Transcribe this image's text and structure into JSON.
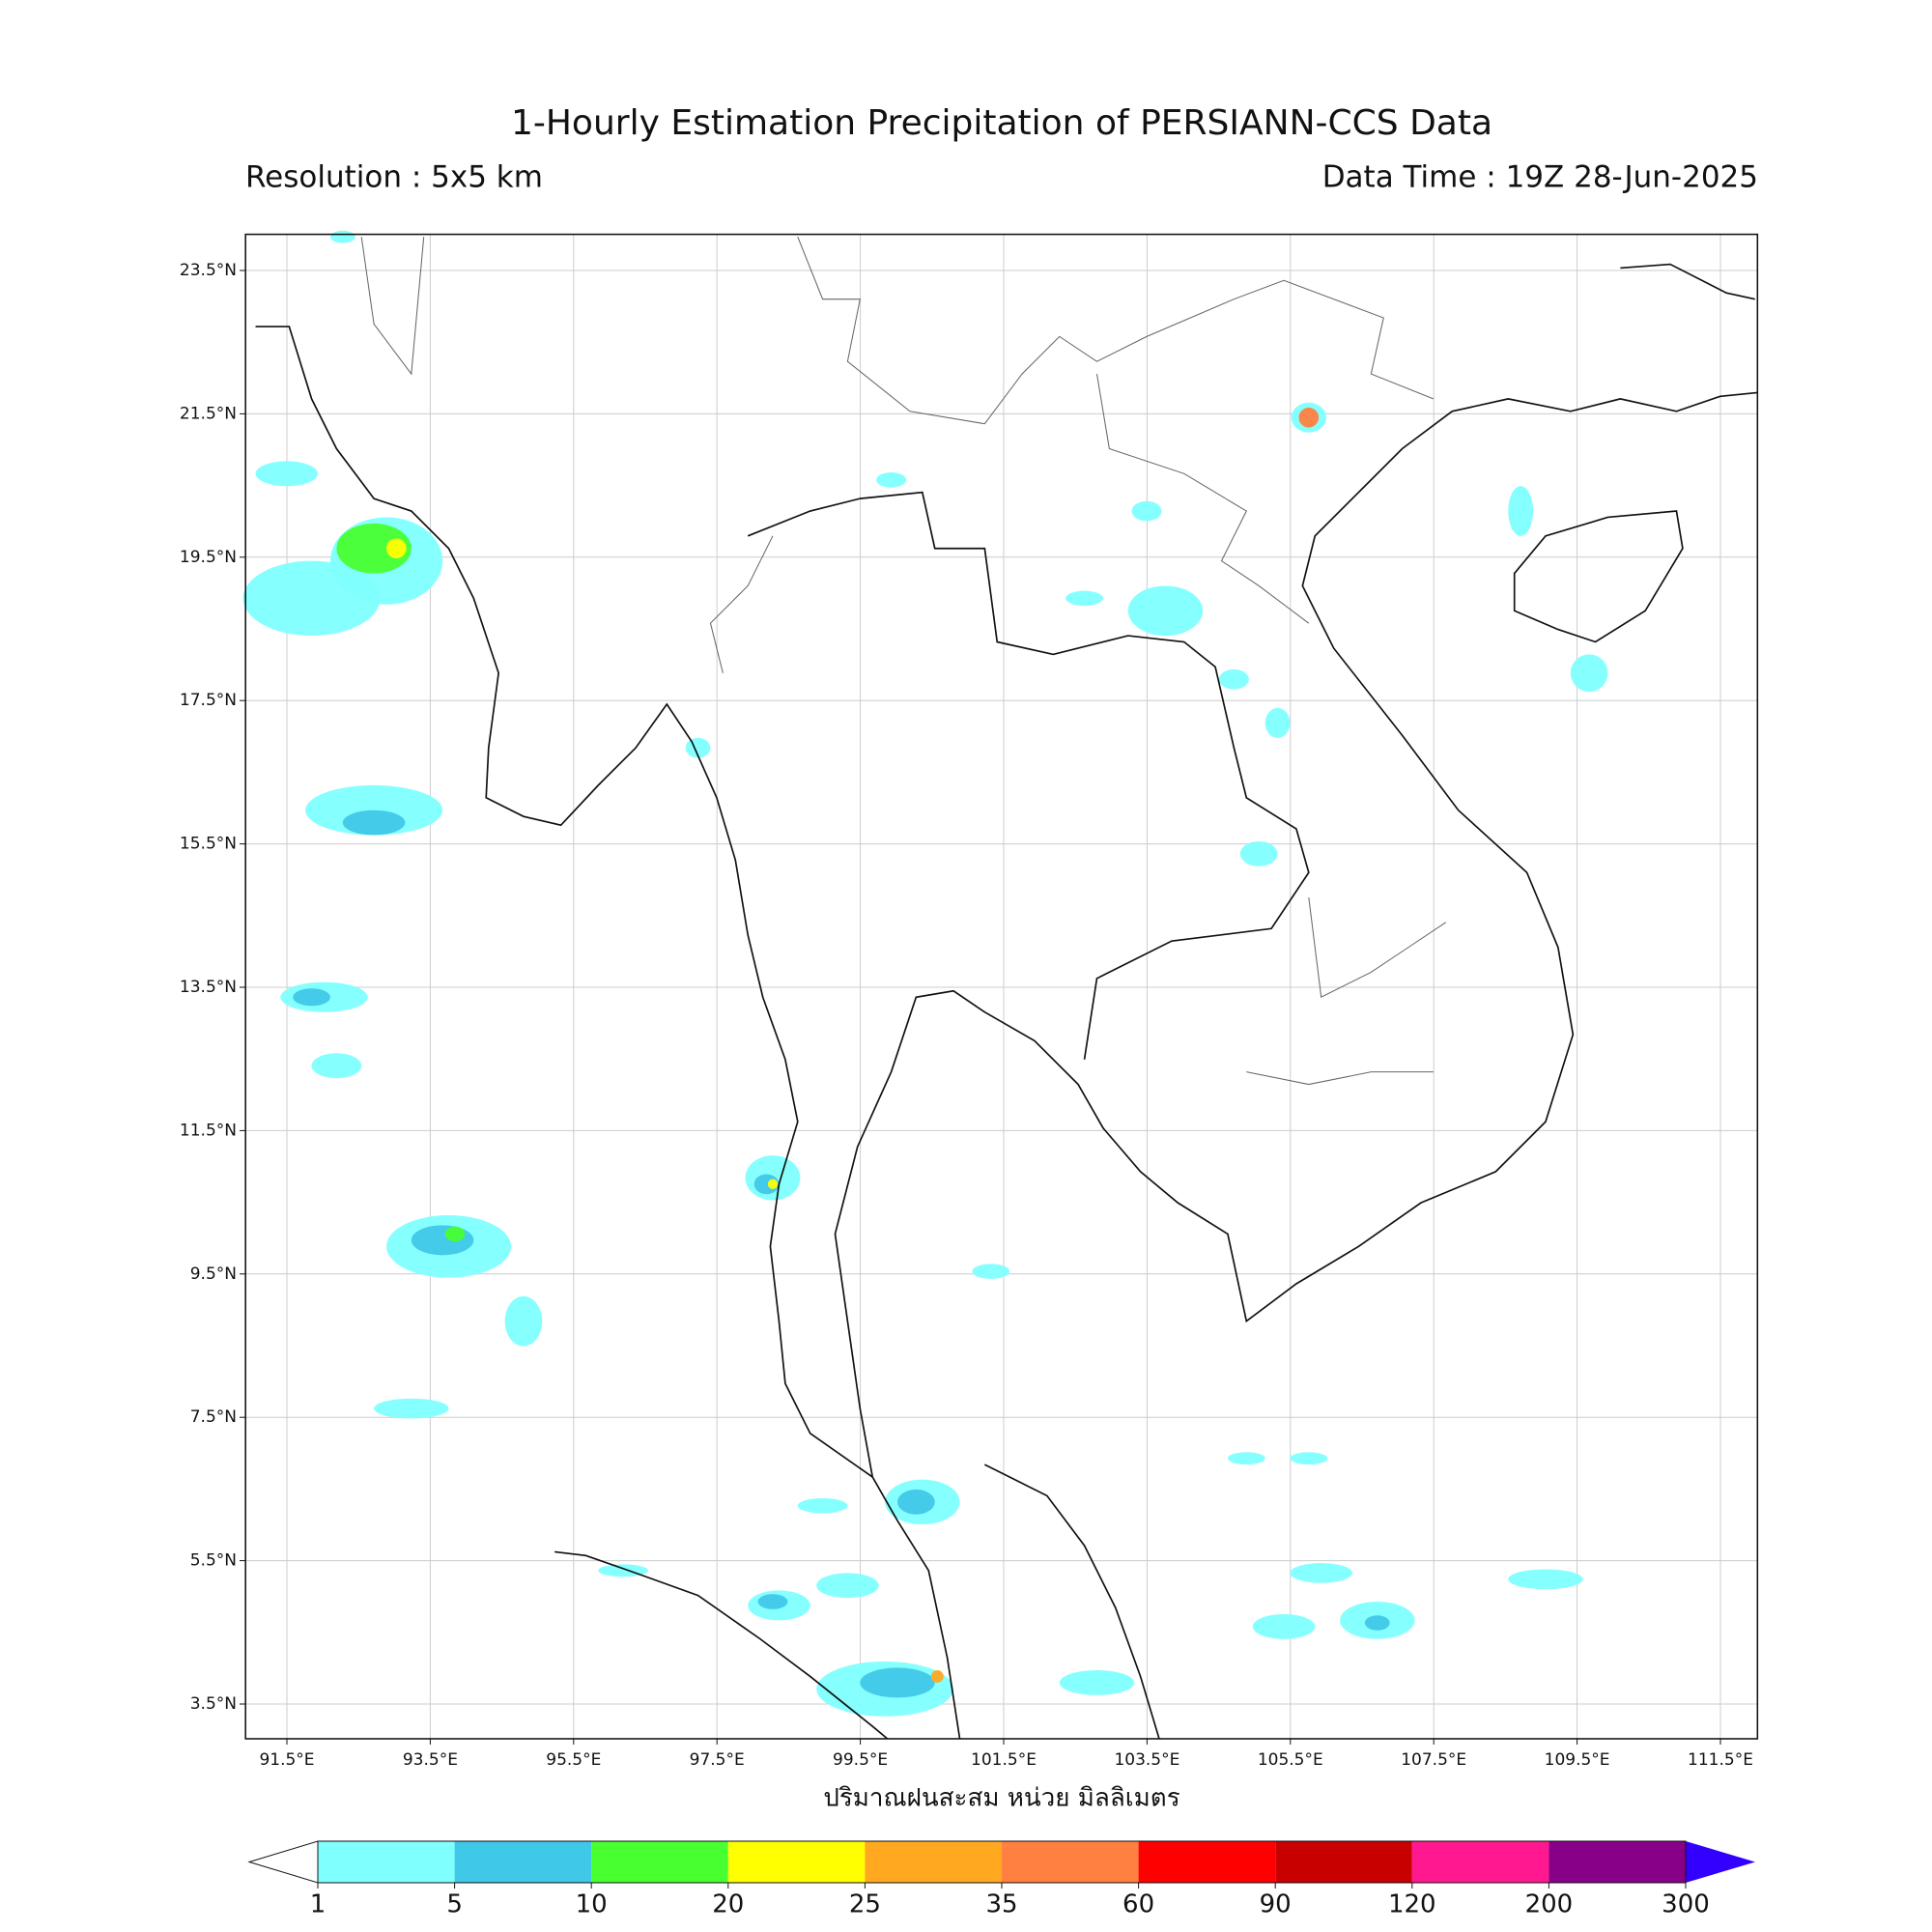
{
  "header": {
    "title": "1-Hourly Estimation Precipitation of PERSIANN-CCS Data",
    "resolution": "Resolution : 5x5 km",
    "data_time": "Data Time : 19Z 28-Jun-2025"
  },
  "map": {
    "lat_ticks": [
      "23.5°N",
      "21.5°N",
      "19.5°N",
      "17.5°N",
      "15.5°N",
      "13.5°N",
      "11.5°N",
      "9.5°N",
      "7.5°N",
      "5.5°N",
      "3.5°N"
    ],
    "lon_ticks": [
      "91.5°E",
      "93.5°E",
      "95.5°E",
      "97.5°E",
      "99.5°E",
      "101.5°E",
      "103.5°E",
      "105.5°E",
      "107.5°E",
      "109.5°E",
      "111.5°E"
    ],
    "x_label": "ปริมาณฝนสะสม หน่วย มิลลิเมตร"
  },
  "colorbar": {
    "levels": [
      1,
      5,
      10,
      20,
      25,
      35,
      60,
      90,
      120,
      200,
      300
    ],
    "colors": [
      "#80ffff",
      "#40c8e8",
      "#48ff30",
      "#ffff00",
      "#ffa820",
      "#ff8040",
      "#ff0000",
      "#c80000",
      "#ff1890",
      "#880088"
    ],
    "over_color": "#3300ff"
  }
}
